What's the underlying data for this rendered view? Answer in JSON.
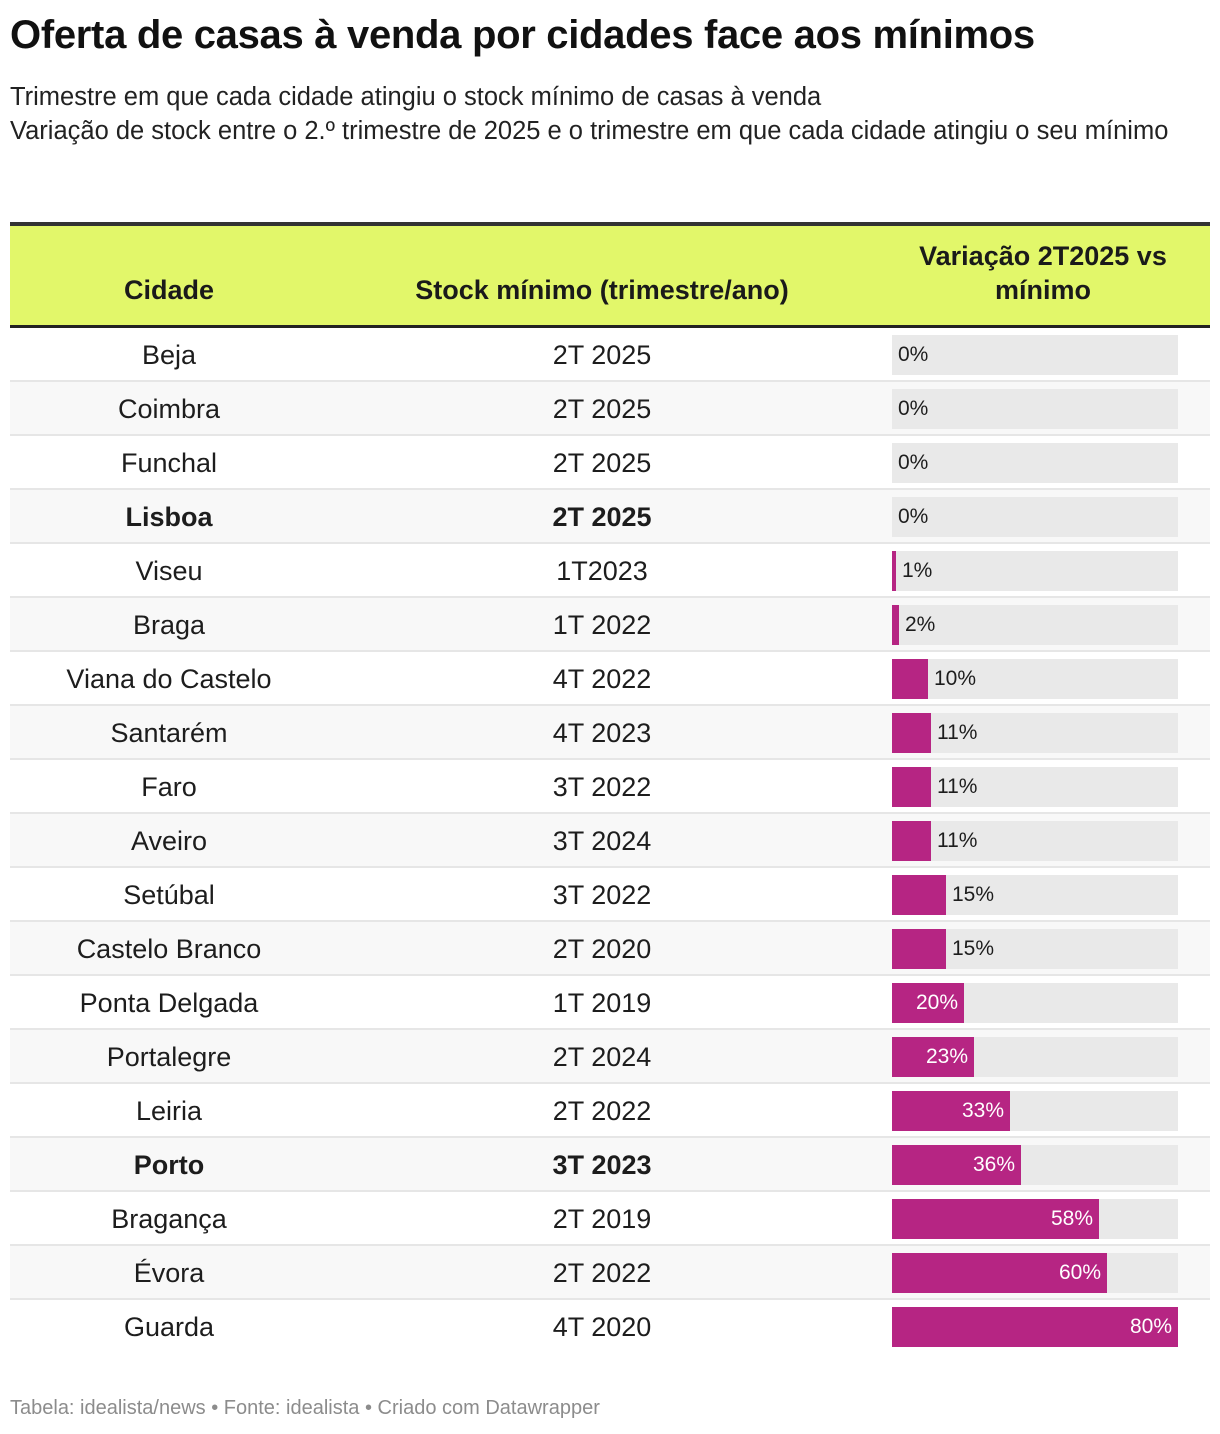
{
  "title": "Oferta de casas à venda por cidades face aos mínimos",
  "subtitle": [
    "Trimestre em que cada cidade atingiu o stock mínimo de casas à venda",
    "Variação de stock entre o 2.º trimestre de 2025 e o trimestre em que cada cidade atingiu o seu mínimo"
  ],
  "colors": {
    "header_bg": "#e2f76a",
    "bar": "#b62583",
    "track": "#e9e9e9"
  },
  "chart_data": {
    "type": "table",
    "columns": [
      "Cidade",
      "Stock mínimo (trimestre/ano)",
      "Variação 2T2025 vs mínimo"
    ],
    "bar_max": 80,
    "rows": [
      {
        "cidade": "Beja",
        "stock_minimo": "2T 2025",
        "variacao": 0,
        "label": "0%",
        "bold": false
      },
      {
        "cidade": "Coimbra",
        "stock_minimo": "2T 2025",
        "variacao": 0,
        "label": "0%",
        "bold": false
      },
      {
        "cidade": "Funchal",
        "stock_minimo": "2T 2025",
        "variacao": 0,
        "label": "0%",
        "bold": false
      },
      {
        "cidade": "Lisboa",
        "stock_minimo": "2T 2025",
        "variacao": 0,
        "label": "0%",
        "bold": true
      },
      {
        "cidade": "Viseu",
        "stock_minimo": "1T2023",
        "variacao": 1,
        "label": "1%",
        "bold": false
      },
      {
        "cidade": "Braga",
        "stock_minimo": "1T 2022",
        "variacao": 2,
        "label": "2%",
        "bold": false
      },
      {
        "cidade": "Viana do Castelo",
        "stock_minimo": "4T 2022",
        "variacao": 10,
        "label": "10%",
        "bold": false
      },
      {
        "cidade": "Santarém",
        "stock_minimo": "4T 2023",
        "variacao": 11,
        "label": "11%",
        "bold": false
      },
      {
        "cidade": "Faro",
        "stock_minimo": "3T 2022",
        "variacao": 11,
        "label": "11%",
        "bold": false
      },
      {
        "cidade": "Aveiro",
        "stock_minimo": "3T 2024",
        "variacao": 11,
        "label": "11%",
        "bold": false
      },
      {
        "cidade": "Setúbal",
        "stock_minimo": "3T 2022",
        "variacao": 15,
        "label": "15%",
        "bold": false
      },
      {
        "cidade": "Castelo Branco",
        "stock_minimo": "2T 2020",
        "variacao": 15,
        "label": "15%",
        "bold": false
      },
      {
        "cidade": "Ponta Delgada",
        "stock_minimo": "1T 2019",
        "variacao": 20,
        "label": "20%",
        "bold": false
      },
      {
        "cidade": "Portalegre",
        "stock_minimo": "2T 2024",
        "variacao": 23,
        "label": "23%",
        "bold": false
      },
      {
        "cidade": "Leiria",
        "stock_minimo": "2T 2022",
        "variacao": 33,
        "label": "33%",
        "bold": false
      },
      {
        "cidade": "Porto",
        "stock_minimo": "3T 2023",
        "variacao": 36,
        "label": "36%",
        "bold": true
      },
      {
        "cidade": "Bragança",
        "stock_minimo": "2T 2019",
        "variacao": 58,
        "label": "58%",
        "bold": false
      },
      {
        "cidade": "Évora",
        "stock_minimo": "2T 2022",
        "variacao": 60,
        "label": "60%",
        "bold": false
      },
      {
        "cidade": "Guarda",
        "stock_minimo": "4T 2020",
        "variacao": 80,
        "label": "80%",
        "bold": false
      }
    ]
  },
  "footer": "Tabela: idealista/news • Fonte: idealista • Criado com Datawrapper"
}
